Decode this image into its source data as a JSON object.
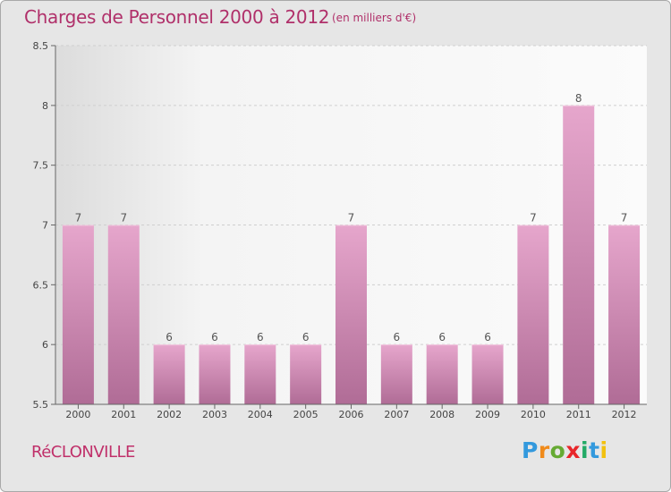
{
  "header": {
    "title": "Charges de Personnel 2000 à 2012",
    "subtitle": "(en milliers d'€)"
  },
  "footer": {
    "commune": "RéCLONVILLE",
    "brand": "Proxiti",
    "brand_colors": [
      "#3399dd",
      "#f08a1a",
      "#66aa33",
      "#e8262a",
      "#22aa66",
      "#3399dd",
      "#f2c10f"
    ]
  },
  "colors": {
    "accent": "#b0306a",
    "bar_top": "#e6a6cc",
    "bar_bottom": "#b06c96",
    "plot_bg": "#f7f7f7"
  },
  "chart_data": {
    "type": "bar",
    "title": "Charges de Personnel 2000 à 2012",
    "subtitle": "(en milliers d'€)",
    "categories": [
      "2000",
      "2001",
      "2002",
      "2003",
      "2004",
      "2005",
      "2006",
      "2007",
      "2008",
      "2009",
      "2010",
      "2011",
      "2012"
    ],
    "values": [
      7,
      7,
      6,
      6,
      6,
      6,
      7,
      6,
      6,
      6,
      7,
      8,
      7
    ],
    "value_labels": [
      "7",
      "7",
      "6",
      "6",
      "6",
      "6",
      "7",
      "6",
      "6",
      "6",
      "7",
      "8",
      "7"
    ],
    "ylim": [
      5.5,
      8.5
    ],
    "yticks": [
      5.5,
      6,
      6.5,
      7,
      7.5,
      8,
      8.5
    ],
    "ytick_labels": [
      "5.5",
      "6",
      "6.5",
      "7",
      "7.5",
      "8",
      "8.5"
    ],
    "grid": true,
    "legend": false
  }
}
